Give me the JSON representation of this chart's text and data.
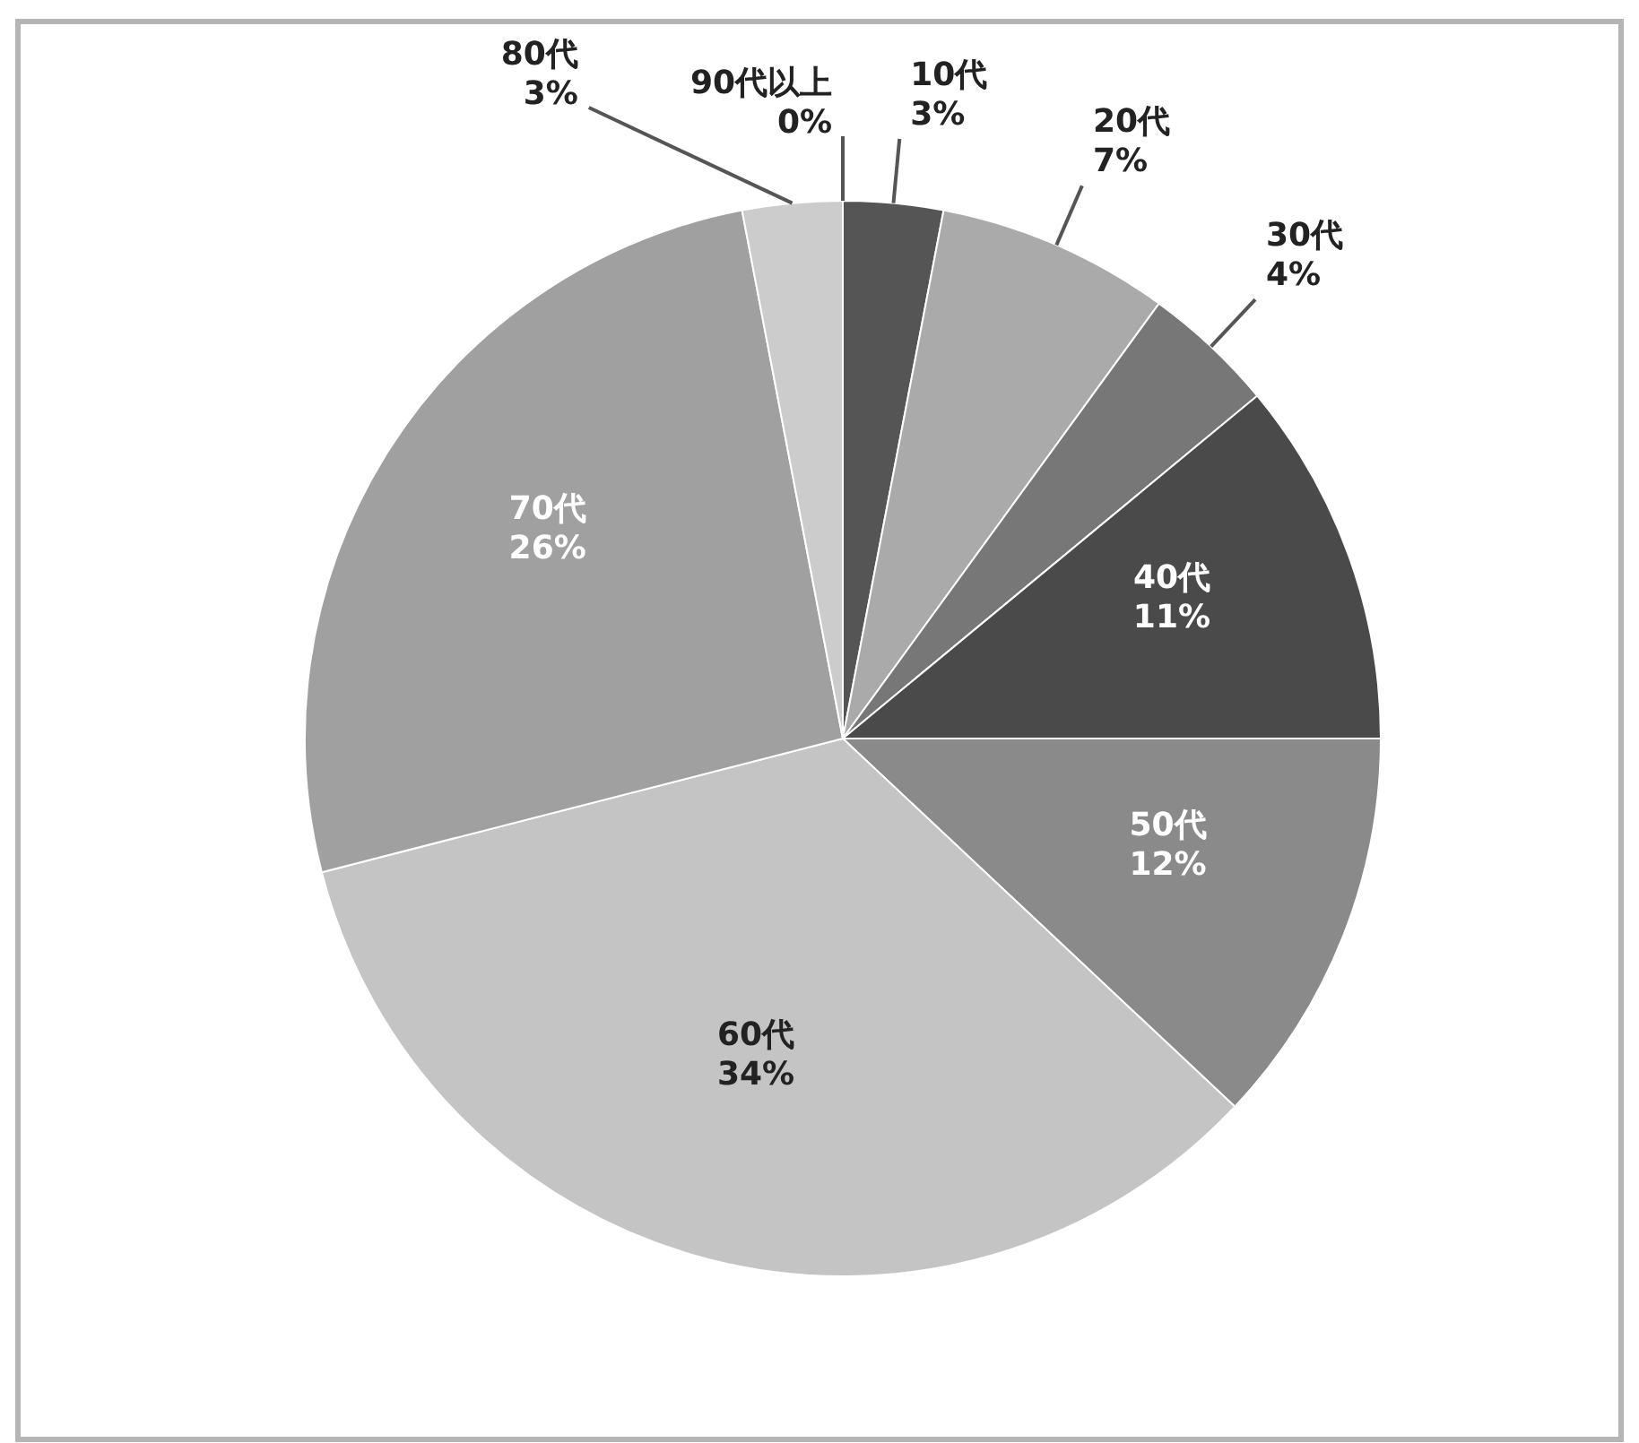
{
  "chart_data": {
    "type": "pie",
    "categories": [
      "10代",
      "20代",
      "30代",
      "40代",
      "50代",
      "60代",
      "70代",
      "80代",
      "90代以上"
    ],
    "values": [
      3,
      7,
      4,
      11,
      12,
      34,
      26,
      3,
      0
    ],
    "colors": [
      "#555555",
      "#aaaaaa",
      "#777777",
      "#4a4a4a",
      "#8a8a8a",
      "#c4c4c4",
      "#a0a0a0",
      "#cccccc",
      "#444444"
    ],
    "value_labels": [
      "3%",
      "7%",
      "4%",
      "11%",
      "12%",
      "34%",
      "26%",
      "3%",
      "0%"
    ]
  }
}
